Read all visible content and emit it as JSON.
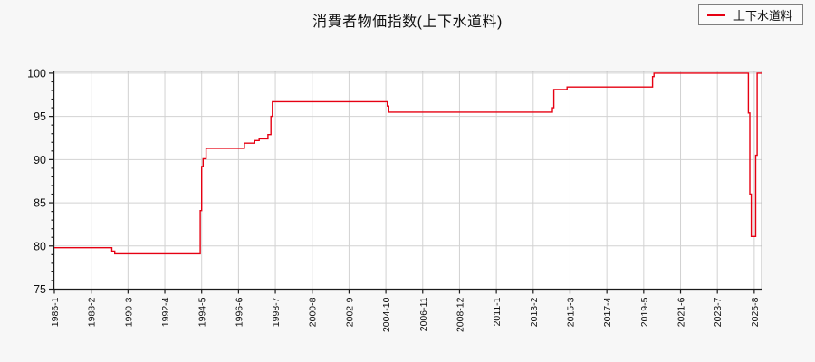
{
  "page": {
    "background": "#f7f7f7"
  },
  "title": {
    "text": "消費者物価指数(上下水道料)"
  },
  "legend": {
    "label": "上下水道料",
    "marker_color": "#e60012"
  },
  "chart_data": {
    "type": "line",
    "line_style": "step-after",
    "title": "消費者物価指数(上下水道料)",
    "xlabel": "",
    "ylabel": "",
    "grid": true,
    "legend_position": "top-right",
    "plot_background": "#ffffff",
    "grid_color": "#d2d2d2",
    "axis_color": "#1a1a1a",
    "frame_color": "#b8b8b8",
    "ylim": [
      75,
      100.2
    ],
    "y_ticks": [
      75,
      80,
      85,
      90,
      95,
      100
    ],
    "y_minor_tick_step": 1,
    "x_axis": {
      "start_month": "1986-01",
      "end_month": "2026-01",
      "tick_interval_months": 25,
      "tick_labels": [
        "1986-1",
        "1988-2",
        "1990-3",
        "1992-4",
        "1994-5",
        "1996-6",
        "1998-7",
        "2000-8",
        "2002-9",
        "2004-10",
        "2006-11",
        "2008-12",
        "2011-1",
        "2013-2",
        "2015-3",
        "2017-4",
        "2019-5",
        "2021-6",
        "2023-7",
        "2025-8"
      ]
    },
    "series": [
      {
        "name": "上下水道料",
        "color": "#e60012",
        "points": [
          [
            "1986-01",
            79.8
          ],
          [
            "1989-04",
            79.4
          ],
          [
            "1989-06",
            79.1
          ],
          [
            "1994-04",
            84.1
          ],
          [
            "1994-05",
            89.2
          ],
          [
            "1994-06",
            90.1
          ],
          [
            "1994-08",
            91.3
          ],
          [
            "1996-10",
            91.9
          ],
          [
            "1997-05",
            92.2
          ],
          [
            "1997-08",
            92.4
          ],
          [
            "1998-02",
            92.9
          ],
          [
            "1998-04",
            95.0
          ],
          [
            "1998-05",
            96.7
          ],
          [
            "2004-11",
            96.2
          ],
          [
            "2004-12",
            95.5
          ],
          [
            "2014-03",
            96.0
          ],
          [
            "2014-04",
            98.1
          ],
          [
            "2015-01",
            98.4
          ],
          [
            "2019-11",
            99.6
          ],
          [
            "2019-12",
            100.0
          ],
          [
            "2025-04",
            95.4
          ],
          [
            "2025-05",
            86.0
          ],
          [
            "2025-06",
            81.1
          ],
          [
            "2025-09",
            90.5
          ],
          [
            "2025-10",
            100.0
          ]
        ]
      }
    ]
  }
}
